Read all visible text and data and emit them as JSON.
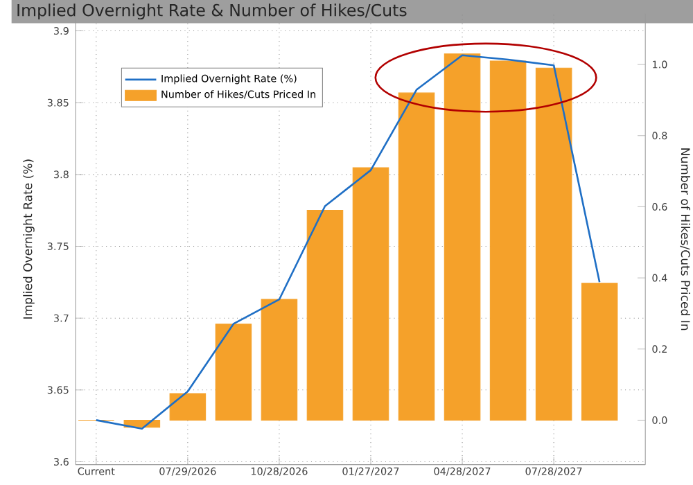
{
  "chart_data": {
    "type": "bar",
    "title": "Implied Overnight Rate & Number of Hikes/Cuts",
    "categories": [
      "Current",
      null,
      "07/29/2026",
      null,
      "10/28/2026",
      null,
      "01/27/2027",
      null,
      "04/28/2027",
      null,
      "07/28/2027",
      null
    ],
    "series": [
      {
        "name": "Implied Overnight Rate (%)",
        "type": "line",
        "color": "#1f6fc5",
        "values": [
          3.629,
          3.623,
          3.649,
          3.696,
          3.713,
          3.778,
          3.803,
          3.859,
          3.883,
          3.88,
          3.876,
          3.725
        ]
      },
      {
        "name": "Number of Hikes/Cuts Priced In",
        "axis": "y2",
        "color": "#f5a12a",
        "values": [
          0,
          -0.02,
          0.075,
          0.27,
          0.34,
          0.59,
          0.71,
          0.92,
          1.03,
          1.01,
          0.99,
          0.385
        ]
      }
    ],
    "ylabel": "Implied Overnight Rate (%)",
    "y2label": "Number of Hikes/Cuts Priced In",
    "ylim": [
      3.598,
      3.912
    ],
    "yticks": [
      3.6,
      3.65,
      3.7,
      3.75,
      3.8,
      3.85,
      3.9
    ],
    "y2lim": [
      -0.125,
      1.143
    ],
    "y2ticks": [
      {
        "value": 0,
        "label": "0.0"
      },
      {
        "value": 0.2,
        "label": "0.2"
      },
      {
        "value": 0.4,
        "label": "0.4"
      },
      {
        "value": 0.6,
        "label": "0.6"
      },
      {
        "value": 0.8,
        "label": "0.8"
      },
      {
        "value": 1.0,
        "label": "1.0"
      }
    ],
    "grid": true,
    "legend": "top left"
  }
}
